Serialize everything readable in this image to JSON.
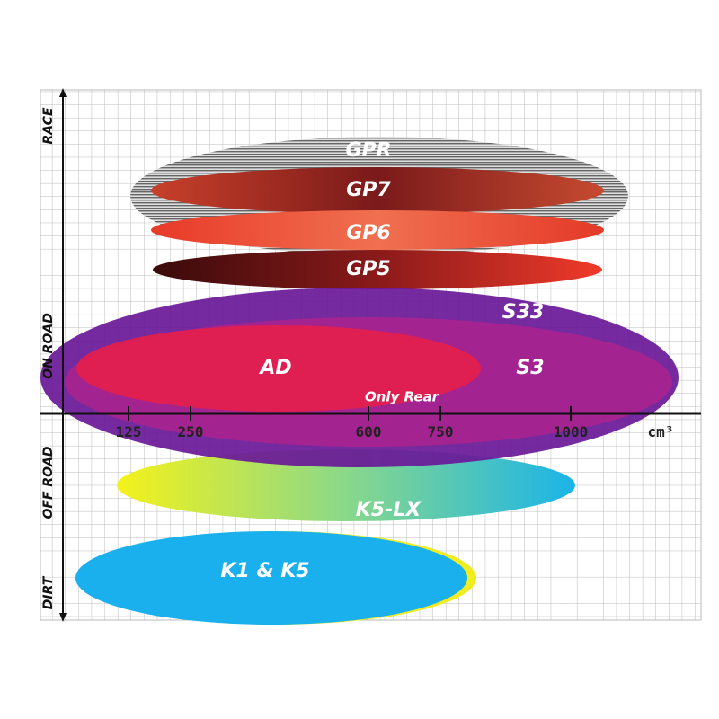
{
  "axis": {
    "y_labels": [
      "RACE",
      "ON ROAD",
      "OFF ROAD",
      "DIRT"
    ],
    "x_ticks": [
      "125",
      "250",
      "600",
      "750",
      "1000"
    ],
    "x_unit": "cm³"
  },
  "products": [
    {
      "label": "GPR"
    },
    {
      "label": "GP7"
    },
    {
      "label": "GP6"
    },
    {
      "label": "GP5"
    },
    {
      "label": "S33"
    },
    {
      "label": "AD"
    },
    {
      "label": "S3"
    },
    {
      "label": "Only Rear"
    },
    {
      "label": "K5-LX"
    },
    {
      "label": "K1 & K5"
    }
  ]
}
